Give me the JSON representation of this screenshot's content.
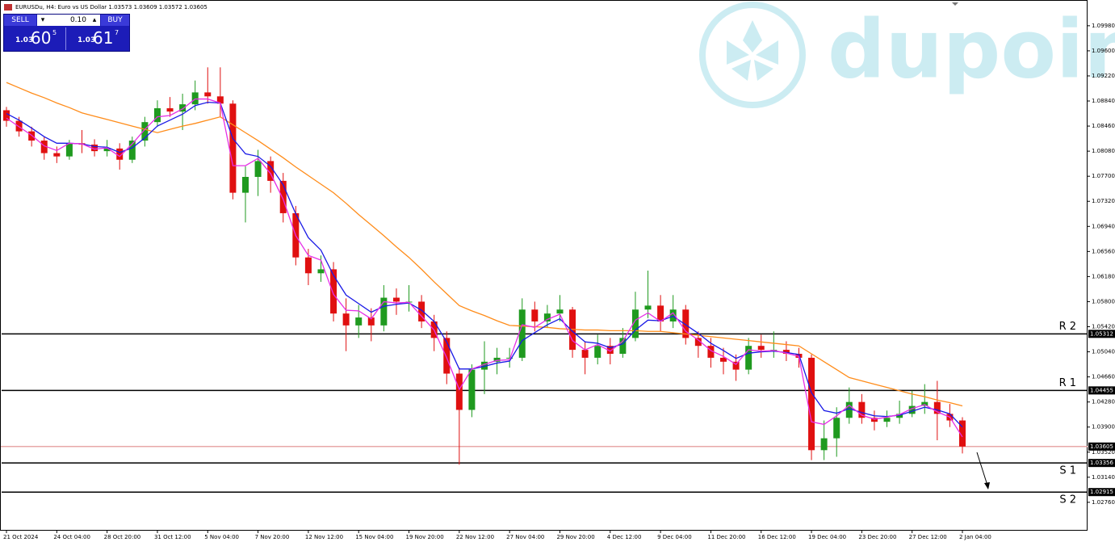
{
  "header": "EURUSDu, H4:  Euro vs US Dollar  1.03573 1.03609 1.03572 1.03605",
  "watermark": "dupoin",
  "trade_panel": {
    "sell": "SELL",
    "lot": "0.10",
    "buy": "BUY",
    "bid_prefix": "1.03",
    "bid_big": "60",
    "bid_small": "5",
    "ask_prefix": "1.03",
    "ask_big": "61",
    "ask_small": "7"
  },
  "chart_data": {
    "type": "candlestick",
    "up_color": "#1f9a1f",
    "down_color": "#e01010",
    "ylim": [
      1.0233,
      1.1037
    ],
    "yticks": [
      {
        "value": 1.0998,
        "label": "1.09980"
      },
      {
        "value": 1.096,
        "label": "1.09600"
      },
      {
        "value": 1.0922,
        "label": "1.09220"
      },
      {
        "value": 1.0884,
        "label": "1.08840"
      },
      {
        "value": 1.0846,
        "label": "1.08460"
      },
      {
        "value": 1.0808,
        "label": "1.08080"
      },
      {
        "value": 1.077,
        "label": "1.07700"
      },
      {
        "value": 1.0732,
        "label": "1.07320"
      },
      {
        "value": 1.0694,
        "label": "1.06940"
      },
      {
        "value": 1.0656,
        "label": "1.06560"
      },
      {
        "value": 1.0618,
        "label": "1.06180"
      },
      {
        "value": 1.058,
        "label": "1.05800"
      },
      {
        "value": 1.0542,
        "label": "1.05420"
      },
      {
        "value": 1.0504,
        "label": "1.05040"
      },
      {
        "value": 1.0466,
        "label": "1.04660"
      },
      {
        "value": 1.0428,
        "label": "1.04280"
      },
      {
        "value": 1.039,
        "label": "1.03900"
      },
      {
        "value": 1.0352,
        "label": "1.03520"
      },
      {
        "value": 1.0314,
        "label": "1.03140"
      },
      {
        "value": 1.0276,
        "label": "1.02760"
      }
    ],
    "categories": [
      "21 Oct 2024",
      null,
      null,
      null,
      "24 Oct 04:00",
      null,
      null,
      null,
      "28 Oct 20:00",
      null,
      null,
      null,
      "31 Oct 12:00",
      null,
      null,
      null,
      "5 Nov 04:00",
      null,
      null,
      null,
      "7 Nov 20:00",
      null,
      null,
      null,
      "12 Nov 12:00",
      null,
      null,
      null,
      "15 Nov 04:00",
      null,
      null,
      null,
      "19 Nov 20:00",
      null,
      null,
      null,
      "22 Nov 12:00",
      null,
      null,
      null,
      "27 Nov 04:00",
      null,
      null,
      null,
      "29 Nov 20:00",
      null,
      null,
      null,
      "4 Dec 12:00",
      null,
      null,
      null,
      "9 Dec 04:00",
      null,
      null,
      null,
      "11 Dec 20:00",
      null,
      null,
      null,
      "16 Dec 12:00",
      null,
      null,
      null,
      "19 Dec 04:00",
      null,
      null,
      null,
      "23 Dec 20:00",
      null,
      null,
      null,
      "27 Dec 12:00",
      null,
      null,
      null,
      "2 Jan 04:00"
    ],
    "ohlc": [
      [
        1.087,
        1.0875,
        1.0845,
        1.0854
      ],
      [
        1.0854,
        1.086,
        1.083,
        1.0838
      ],
      [
        1.0838,
        1.0845,
        1.0815,
        1.0824
      ],
      [
        1.0824,
        1.083,
        1.0795,
        1.0805
      ],
      [
        1.0805,
        1.0815,
        1.079,
        1.08
      ],
      [
        1.08,
        1.0825,
        1.0795,
        1.082
      ],
      [
        1.082,
        1.084,
        1.0805,
        1.0818
      ],
      [
        1.0818,
        1.0826,
        1.08,
        1.0808
      ],
      [
        1.0808,
        1.0825,
        1.08,
        1.0812
      ],
      [
        1.0812,
        1.082,
        1.078,
        1.0795
      ],
      [
        1.0795,
        1.083,
        1.079,
        1.0824
      ],
      [
        1.0824,
        1.086,
        1.0815,
        1.0852
      ],
      [
        1.0852,
        1.0885,
        1.0845,
        1.0873
      ],
      [
        1.0873,
        1.089,
        1.086,
        1.0868
      ],
      [
        1.0868,
        1.0895,
        1.084,
        1.0879
      ],
      [
        1.0879,
        1.0915,
        1.087,
        1.0897
      ],
      [
        1.0897,
        1.0935,
        1.088,
        1.0891
      ],
      [
        1.0891,
        1.0935,
        1.086,
        1.088
      ],
      [
        1.088,
        1.0885,
        1.0735,
        1.0745
      ],
      [
        1.0745,
        1.0785,
        1.07,
        1.0769
      ],
      [
        1.0769,
        1.081,
        1.074,
        1.0793
      ],
      [
        1.0793,
        1.08,
        1.0745,
        1.0763
      ],
      [
        1.0763,
        1.0775,
        1.07,
        1.0714
      ],
      [
        1.0714,
        1.0725,
        1.0635,
        1.0647
      ],
      [
        1.0647,
        1.066,
        1.0605,
        1.0623
      ],
      [
        1.0623,
        1.065,
        1.061,
        1.0629
      ],
      [
        1.0629,
        1.064,
        1.055,
        1.0562
      ],
      [
        1.0562,
        1.0585,
        1.0505,
        1.0544
      ],
      [
        1.0544,
        1.0575,
        1.0525,
        1.0556
      ],
      [
        1.0556,
        1.057,
        1.052,
        1.0544
      ],
      [
        1.0544,
        1.0605,
        1.0535,
        1.0586
      ],
      [
        1.0586,
        1.06,
        1.056,
        1.058
      ],
      [
        1.058,
        1.0605,
        1.0565,
        1.058
      ],
      [
        1.058,
        1.059,
        1.054,
        1.055
      ],
      [
        1.055,
        1.056,
        1.0505,
        1.0525
      ],
      [
        1.0525,
        1.0535,
        1.0455,
        1.0471
      ],
      [
        1.0471,
        1.048,
        1.0333,
        1.0416
      ],
      [
        1.0416,
        1.0485,
        1.0405,
        1.0477
      ],
      [
        1.0477,
        1.052,
        1.044,
        1.0489
      ],
      [
        1.0489,
        1.051,
        1.047,
        1.0495
      ],
      [
        1.0495,
        1.051,
        1.048,
        1.0495
      ],
      [
        1.0495,
        1.0585,
        1.049,
        1.0568
      ],
      [
        1.0568,
        1.058,
        1.0535,
        1.055
      ],
      [
        1.055,
        1.0575,
        1.054,
        1.0562
      ],
      [
        1.0562,
        1.059,
        1.055,
        1.0568
      ],
      [
        1.0568,
        1.0572,
        1.0495,
        1.0507
      ],
      [
        1.0507,
        1.052,
        1.047,
        1.0495
      ],
      [
        1.0495,
        1.053,
        1.0485,
        1.0513
      ],
      [
        1.0513,
        1.0525,
        1.0485,
        1.0501
      ],
      [
        1.0501,
        1.054,
        1.0495,
        1.0525
      ],
      [
        1.0525,
        1.0595,
        1.052,
        1.0568
      ],
      [
        1.0568,
        1.0627,
        1.0555,
        1.0574
      ],
      [
        1.0574,
        1.059,
        1.0535,
        1.055
      ],
      [
        1.055,
        1.059,
        1.054,
        1.0568
      ],
      [
        1.0568,
        1.0575,
        1.0515,
        1.0525
      ],
      [
        1.0525,
        1.0535,
        1.0495,
        1.0513
      ],
      [
        1.0513,
        1.0525,
        1.048,
        1.0495
      ],
      [
        1.0495,
        1.051,
        1.047,
        1.0489
      ],
      [
        1.0489,
        1.05,
        1.046,
        1.0477
      ],
      [
        1.0477,
        1.0525,
        1.047,
        1.0513
      ],
      [
        1.0513,
        1.053,
        1.0495,
        1.0507
      ],
      [
        1.0507,
        1.0535,
        1.0495,
        1.0507
      ],
      [
        1.0507,
        1.052,
        1.049,
        1.0501
      ],
      [
        1.0501,
        1.051,
        1.048,
        1.0495
      ],
      [
        1.0495,
        1.05,
        1.034,
        1.0355
      ],
      [
        1.0355,
        1.04,
        1.034,
        1.0373
      ],
      [
        1.0373,
        1.042,
        1.0345,
        1.0404
      ],
      [
        1.0404,
        1.045,
        1.0395,
        1.0428
      ],
      [
        1.0428,
        1.044,
        1.0395,
        1.0404
      ],
      [
        1.0404,
        1.0415,
        1.0385,
        1.0398
      ],
      [
        1.0398,
        1.0415,
        1.039,
        1.0404
      ],
      [
        1.0404,
        1.043,
        1.0395,
        1.041
      ],
      [
        1.041,
        1.0445,
        1.0405,
        1.0422
      ],
      [
        1.0422,
        1.0455,
        1.041,
        1.0428
      ],
      [
        1.0428,
        1.046,
        1.037,
        1.041
      ],
      [
        1.041,
        1.0425,
        1.039,
        1.04
      ],
      [
        1.04,
        1.0405,
        1.035,
        1.03605
      ]
    ],
    "indicators": [
      {
        "color": "#ff8c1a",
        "values": [
          1.0912,
          1.0904,
          1.0896,
          1.0889,
          1.0881,
          1.0874,
          1.0866,
          1.0861,
          1.0856,
          1.0851,
          1.0846,
          1.0841,
          1.0836,
          1.0841,
          1.0846,
          1.085,
          1.0855,
          1.086,
          1.0848,
          1.0836,
          1.0824,
          1.0811,
          1.0798,
          1.0784,
          1.0771,
          1.0758,
          1.0745,
          1.0729,
          1.0712,
          1.0696,
          1.068,
          1.0663,
          1.0647,
          1.0629,
          1.061,
          1.0592,
          1.0574,
          1.0566,
          1.0559,
          1.0551,
          1.0544,
          1.0543,
          1.0542,
          1.0541,
          1.0539,
          1.0538,
          1.0537,
          1.0537,
          1.0536,
          1.0536,
          1.0536,
          1.0535,
          1.0535,
          1.0533,
          1.0531,
          1.0529,
          1.0527,
          1.0525,
          1.0523,
          1.0521,
          1.0519,
          1.0517,
          1.0515,
          1.0513,
          1.0501,
          1.0489,
          1.0477,
          1.0465,
          1.046,
          1.0455,
          1.045,
          1.0445,
          1.044,
          1.0436,
          1.0431,
          1.0427,
          1.0422
        ]
      },
      {
        "color": "#1a1ae6",
        "values": [
          1.0865,
          1.0855,
          1.0843,
          1.083,
          1.082,
          1.082,
          1.0819,
          1.0815,
          1.0814,
          1.0806,
          1.0813,
          1.0828,
          1.0846,
          1.0855,
          1.0864,
          1.0877,
          1.0882,
          1.0881,
          1.0827,
          1.0804,
          1.08,
          1.0785,
          1.0757,
          1.0713,
          1.0677,
          1.0658,
          1.062,
          1.059,
          1.0577,
          1.0564,
          1.0573,
          1.0576,
          1.0578,
          1.0567,
          1.055,
          1.0519,
          1.0478,
          1.0478,
          1.0482,
          1.0487,
          1.049,
          1.0521,
          1.0533,
          1.0545,
          1.0554,
          1.0535,
          1.0519,
          1.0517,
          1.051,
          1.0516,
          1.0537,
          1.0552,
          1.0551,
          1.0558,
          1.0545,
          1.0532,
          1.0517,
          1.0506,
          1.0494,
          1.0502,
          1.0504,
          1.0505,
          1.0503,
          1.05,
          1.0442,
          1.0415,
          1.0411,
          1.0418,
          1.0412,
          1.0407,
          1.0406,
          1.0408,
          1.0414,
          1.042,
          1.0416,
          1.041,
          1.039
        ]
      },
      {
        "color": "#e62ee6",
        "values": [
          1.0858,
          1.0845,
          1.0832,
          1.0816,
          1.0809,
          1.082,
          1.0819,
          1.0811,
          1.0813,
          1.08,
          1.0819,
          1.0841,
          1.086,
          1.0862,
          1.0872,
          1.0887,
          1.0887,
          1.0881,
          1.0786,
          1.0786,
          1.0797,
          1.0774,
          1.0735,
          1.068,
          1.065,
          1.0643,
          1.0591,
          1.0567,
          1.0566,
          1.0554,
          1.058,
          1.0578,
          1.0579,
          1.0558,
          1.0537,
          1.0495,
          1.0447,
          1.0478,
          1.0485,
          1.0491,
          1.0492,
          1.0545,
          1.0541,
          1.0553,
          1.0561,
          1.0521,
          1.0507,
          1.0515,
          1.0505,
          1.052,
          1.0552,
          1.0563,
          1.055,
          1.0563,
          1.0535,
          1.0522,
          1.0506,
          1.0497,
          1.0485,
          1.0507,
          1.0505,
          1.0506,
          1.0502,
          1.0497,
          1.0398,
          1.0394,
          1.0407,
          1.0423,
          1.0408,
          1.0402,
          1.0405,
          1.0409,
          1.0418,
          1.0424,
          1.0413,
          1.0405,
          1.0375
        ]
      }
    ],
    "levels": [
      {
        "name": "R 2",
        "value": 1.05312,
        "color": "#000000"
      },
      {
        "name": "R 1",
        "value": 1.04455,
        "color": "#000000"
      },
      {
        "name": "S 1",
        "value": 1.03356,
        "color": "#000000"
      },
      {
        "name": "S 2",
        "value": 1.02915,
        "color": "#000000"
      }
    ],
    "last_price": 1.03605,
    "last_price_color": "#e8a8a8"
  }
}
